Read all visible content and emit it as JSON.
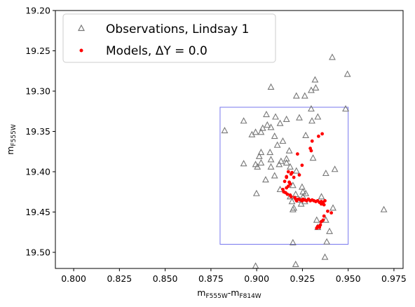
{
  "chart_data": {
    "type": "scatter",
    "xlabel": "m_F555W-m_F814W",
    "ylabel": "m_F555W",
    "xlim": [
      0.79,
      0.98
    ],
    "ylim": [
      19.52,
      19.2
    ],
    "y_inverted": true,
    "grid": false,
    "legend_placement": "top-left",
    "x_ticks": [
      "0.800",
      "0.825",
      "0.850",
      "0.875",
      "0.900",
      "0.925",
      "0.950",
      "0.975"
    ],
    "x_tick_values": [
      0.8,
      0.825,
      0.85,
      0.875,
      0.9,
      0.925,
      0.95,
      0.975
    ],
    "y_ticks": [
      "19.20",
      "19.25",
      "19.30",
      "19.35",
      "19.40",
      "19.45",
      "19.50"
    ],
    "y_tick_values": [
      19.2,
      19.25,
      19.3,
      19.35,
      19.4,
      19.45,
      19.5
    ],
    "box": {
      "x": [
        0.88,
        0.95
      ],
      "y": [
        19.32,
        19.49
      ],
      "color": "#7777ee"
    },
    "series": [
      {
        "name": "Observations, Lindsay 1",
        "legend_label": "Observations, Lindsay 1",
        "marker": "open-triangle",
        "color": "#777777",
        "points": [
          [
            0.9413,
            19.258
          ],
          [
            0.9496,
            19.279
          ],
          [
            0.9319,
            19.286
          ],
          [
            0.9078,
            19.295
          ],
          [
            0.9323,
            19.296
          ],
          [
            0.9298,
            19.299
          ],
          [
            0.9217,
            19.306
          ],
          [
            0.9263,
            19.306
          ],
          [
            0.9486,
            19.322
          ],
          [
            0.9298,
            19.322
          ],
          [
            0.9334,
            19.332
          ],
          [
            0.9053,
            19.329
          ],
          [
            0.9103,
            19.332
          ],
          [
            0.9163,
            19.335
          ],
          [
            0.9233,
            19.333
          ],
          [
            0.9302,
            19.337
          ],
          [
            0.8929,
            19.337
          ],
          [
            0.9128,
            19.34
          ],
          [
            0.9058,
            19.342
          ],
          [
            0.9078,
            19.345
          ],
          [
            0.9033,
            19.346
          ],
          [
            0.8825,
            19.349
          ],
          [
            0.8994,
            19.351
          ],
          [
            0.9024,
            19.351
          ],
          [
            0.8974,
            19.354
          ],
          [
            0.9268,
            19.355
          ],
          [
            0.9098,
            19.356
          ],
          [
            0.9143,
            19.362
          ],
          [
            0.9113,
            19.367
          ],
          [
            0.9178,
            19.374
          ],
          [
            0.9073,
            19.376
          ],
          [
            0.9024,
            19.376
          ],
          [
            0.9014,
            19.381
          ],
          [
            0.9308,
            19.383
          ],
          [
            0.9163,
            19.384
          ],
          [
            0.9078,
            19.385
          ],
          [
            0.9133,
            19.387
          ],
          [
            0.9024,
            19.389
          ],
          [
            0.8929,
            19.39
          ],
          [
            0.9123,
            19.391
          ],
          [
            0.9163,
            19.389
          ],
          [
            0.8994,
            19.391
          ],
          [
            0.9004,
            19.394
          ],
          [
            0.9078,
            19.394
          ],
          [
            0.9183,
            19.394
          ],
          [
            0.9427,
            19.397
          ],
          [
            0.9217,
            19.399
          ],
          [
            0.9378,
            19.402
          ],
          [
            0.9098,
            19.405
          ],
          [
            0.9049,
            19.41
          ],
          [
            0.9198,
            19.417
          ],
          [
            0.9248,
            19.419
          ],
          [
            0.9128,
            19.422
          ],
          [
            0.9253,
            19.425
          ],
          [
            0.8999,
            19.427
          ],
          [
            0.9268,
            19.427
          ],
          [
            0.9213,
            19.428
          ],
          [
            0.9183,
            19.431
          ],
          [
            0.9253,
            19.431
          ],
          [
            0.9354,
            19.431
          ],
          [
            0.9233,
            19.435
          ],
          [
            0.9193,
            19.437
          ],
          [
            0.9263,
            19.437
          ],
          [
            0.9243,
            19.44
          ],
          [
            0.9203,
            19.445
          ],
          [
            0.9417,
            19.445
          ],
          [
            0.9198,
            19.447
          ],
          [
            0.9695,
            19.447
          ],
          [
            0.9328,
            19.46
          ],
          [
            0.9378,
            19.46
          ],
          [
            0.9334,
            19.469
          ],
          [
            0.9398,
            19.474
          ],
          [
            0.9198,
            19.488
          ],
          [
            0.9383,
            19.487
          ],
          [
            0.9373,
            19.506
          ],
          [
            0.8994,
            19.517
          ],
          [
            0.9213,
            19.515
          ]
        ]
      },
      {
        "name": "Models, ΔY = 0.0",
        "legend_label": "Models, ΔY = 0.0",
        "marker": "dot",
        "color": "#ff0000",
        "points": [
          [
            0.9358,
            19.353
          ],
          [
            0.9338,
            19.356
          ],
          [
            0.9303,
            19.362
          ],
          [
            0.9293,
            19.371
          ],
          [
            0.9298,
            19.374
          ],
          [
            0.9223,
            19.378
          ],
          [
            0.9248,
            19.392
          ],
          [
            0.9173,
            19.4
          ],
          [
            0.9193,
            19.401
          ],
          [
            0.9188,
            19.403
          ],
          [
            0.9163,
            19.406
          ],
          [
            0.9163,
            19.407
          ],
          [
            0.9203,
            19.407
          ],
          [
            0.9233,
            19.404
          ],
          [
            0.9153,
            19.412
          ],
          [
            0.9178,
            19.413
          ],
          [
            0.9183,
            19.415
          ],
          [
            0.9173,
            19.418
          ],
          [
            0.9163,
            19.42
          ],
          [
            0.9143,
            19.422
          ],
          [
            0.9148,
            19.425
          ],
          [
            0.9158,
            19.426
          ],
          [
            0.9168,
            19.428
          ],
          [
            0.9183,
            19.429
          ],
          [
            0.9188,
            19.431
          ],
          [
            0.9208,
            19.432
          ],
          [
            0.9213,
            19.434
          ],
          [
            0.9218,
            19.436
          ],
          [
            0.9228,
            19.434
          ],
          [
            0.9238,
            19.435
          ],
          [
            0.9248,
            19.436
          ],
          [
            0.9253,
            19.434
          ],
          [
            0.9263,
            19.435
          ],
          [
            0.9273,
            19.436
          ],
          [
            0.9283,
            19.434
          ],
          [
            0.9293,
            19.436
          ],
          [
            0.9303,
            19.435
          ],
          [
            0.9313,
            19.436
          ],
          [
            0.9323,
            19.437
          ],
          [
            0.9333,
            19.436
          ],
          [
            0.9343,
            19.438
          ],
          [
            0.9353,
            19.437
          ],
          [
            0.9363,
            19.438
          ],
          [
            0.9373,
            19.436
          ],
          [
            0.9353,
            19.44
          ],
          [
            0.9368,
            19.441
          ],
          [
            0.9388,
            19.449
          ],
          [
            0.9408,
            19.451
          ],
          [
            0.9368,
            19.455
          ],
          [
            0.9363,
            19.46
          ],
          [
            0.9353,
            19.462
          ],
          [
            0.9348,
            19.466
          ],
          [
            0.9333,
            19.468
          ],
          [
            0.9343,
            19.469
          ],
          [
            0.9328,
            19.47
          ]
        ]
      }
    ]
  }
}
